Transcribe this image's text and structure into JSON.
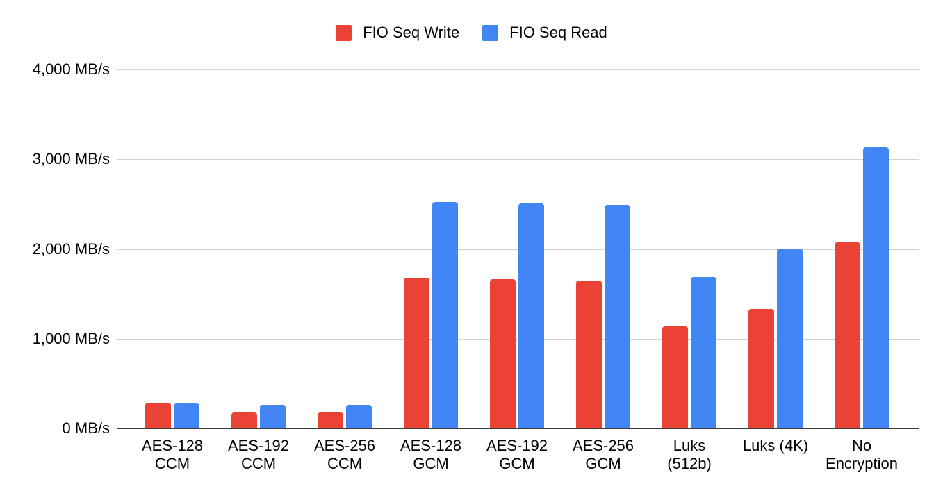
{
  "chart_data": {
    "type": "bar",
    "title": "",
    "xlabel": "",
    "ylabel": "",
    "unit": "MB/s",
    "ylim": [
      0,
      4000
    ],
    "grid": true,
    "legend_position": "top",
    "categories": [
      "AES-128 CCM",
      "AES-192 CCM",
      "AES-256 CCM",
      "AES-128 GCM",
      "AES-192 GCM",
      "AES-256 GCM",
      "Luks (512b)",
      "Luks (4K)",
      "No Encryption"
    ],
    "category_tick_lines": [
      [
        "AES-128",
        "CCM"
      ],
      [
        "AES-192",
        "CCM"
      ],
      [
        "AES-256",
        "CCM"
      ],
      [
        "AES-128",
        "GCM"
      ],
      [
        "AES-192",
        "GCM"
      ],
      [
        "AES-256",
        "GCM"
      ],
      [
        "Luks",
        "(512b)"
      ],
      [
        "Luks (4K)"
      ],
      [
        "No",
        "Encryption"
      ]
    ],
    "series": [
      {
        "name": "FIO Seq Write",
        "color": "#EA4335",
        "values": [
          285,
          175,
          175,
          1680,
          1660,
          1650,
          1140,
          1330,
          2070
        ]
      },
      {
        "name": "FIO Seq Read",
        "color": "#4285F4",
        "values": [
          280,
          265,
          265,
          2520,
          2510,
          2490,
          1690,
          2000,
          3130
        ]
      }
    ],
    "y_ticks": [
      {
        "value": 0,
        "label": "0 MB/s"
      },
      {
        "value": 1000,
        "label": "1,000 MB/s"
      },
      {
        "value": 2000,
        "label": "2,000 MB/s"
      },
      {
        "value": 3000,
        "label": "3,000 MB/s"
      },
      {
        "value": 4000,
        "label": "4,000 MB/s"
      }
    ]
  },
  "colors": {
    "background": "#ffffff",
    "gridline": "#d2d2d2",
    "axis_line": "#3c3c3c",
    "text": "#000000"
  }
}
